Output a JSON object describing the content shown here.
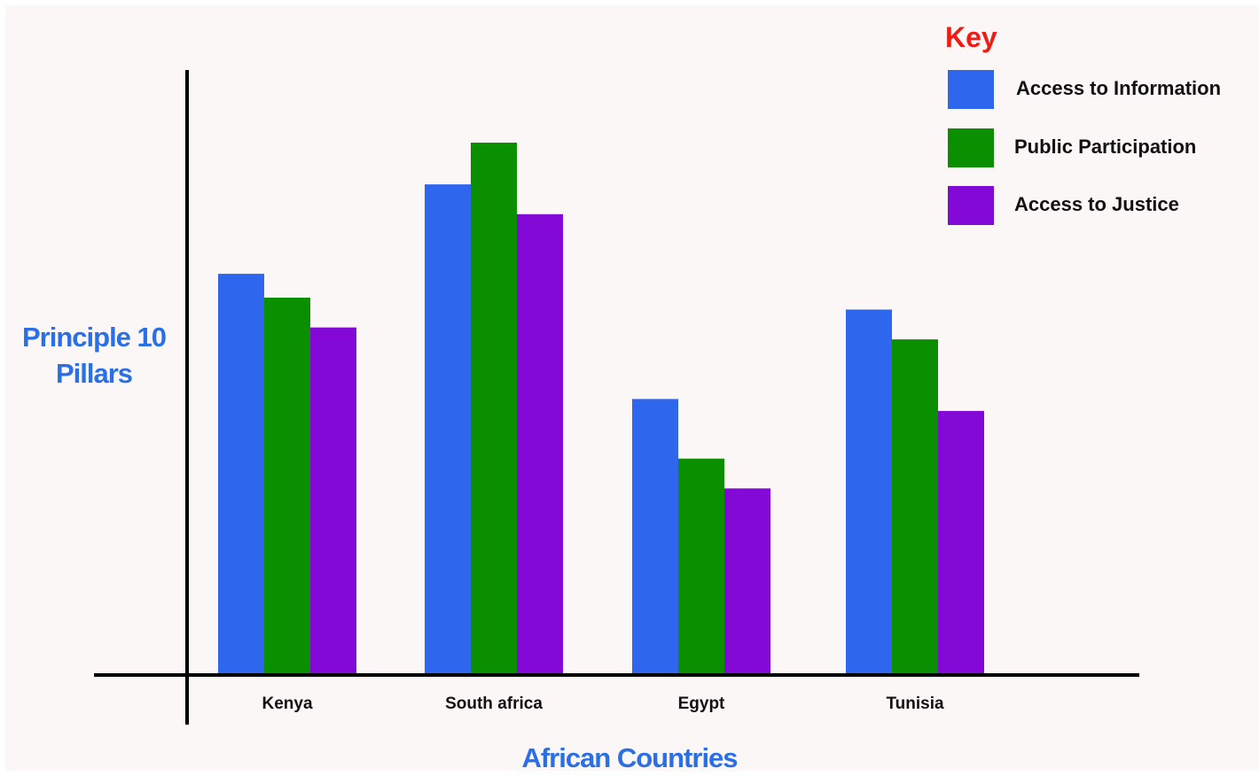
{
  "chart_data": {
    "type": "bar",
    "title": "",
    "xlabel": "African Countries",
    "ylabel": "Principle 10\nPillars",
    "ylim": [
      0,
      100
    ],
    "grid": false,
    "legend_placement": "top-right",
    "legend_title": "Key",
    "categories": [
      "Kenya",
      "South africa",
      "Egypt",
      "Tunisia"
    ],
    "series": [
      {
        "name": "Access to Information",
        "color": "#2e66ee",
        "values": [
          67,
          82,
          46,
          61
        ]
      },
      {
        "name": "Public Participation",
        "color": "#0a8f00",
        "values": [
          63,
          89,
          36,
          56
        ]
      },
      {
        "name": "Access to Justice",
        "color": "#8209d6",
        "values": [
          58,
          77,
          31,
          44
        ]
      }
    ]
  },
  "colors": {
    "axis": "#000000",
    "axis_title": "#2a6fe6",
    "legend_title": "#ee1c14",
    "background": "#fbf7f6"
  }
}
